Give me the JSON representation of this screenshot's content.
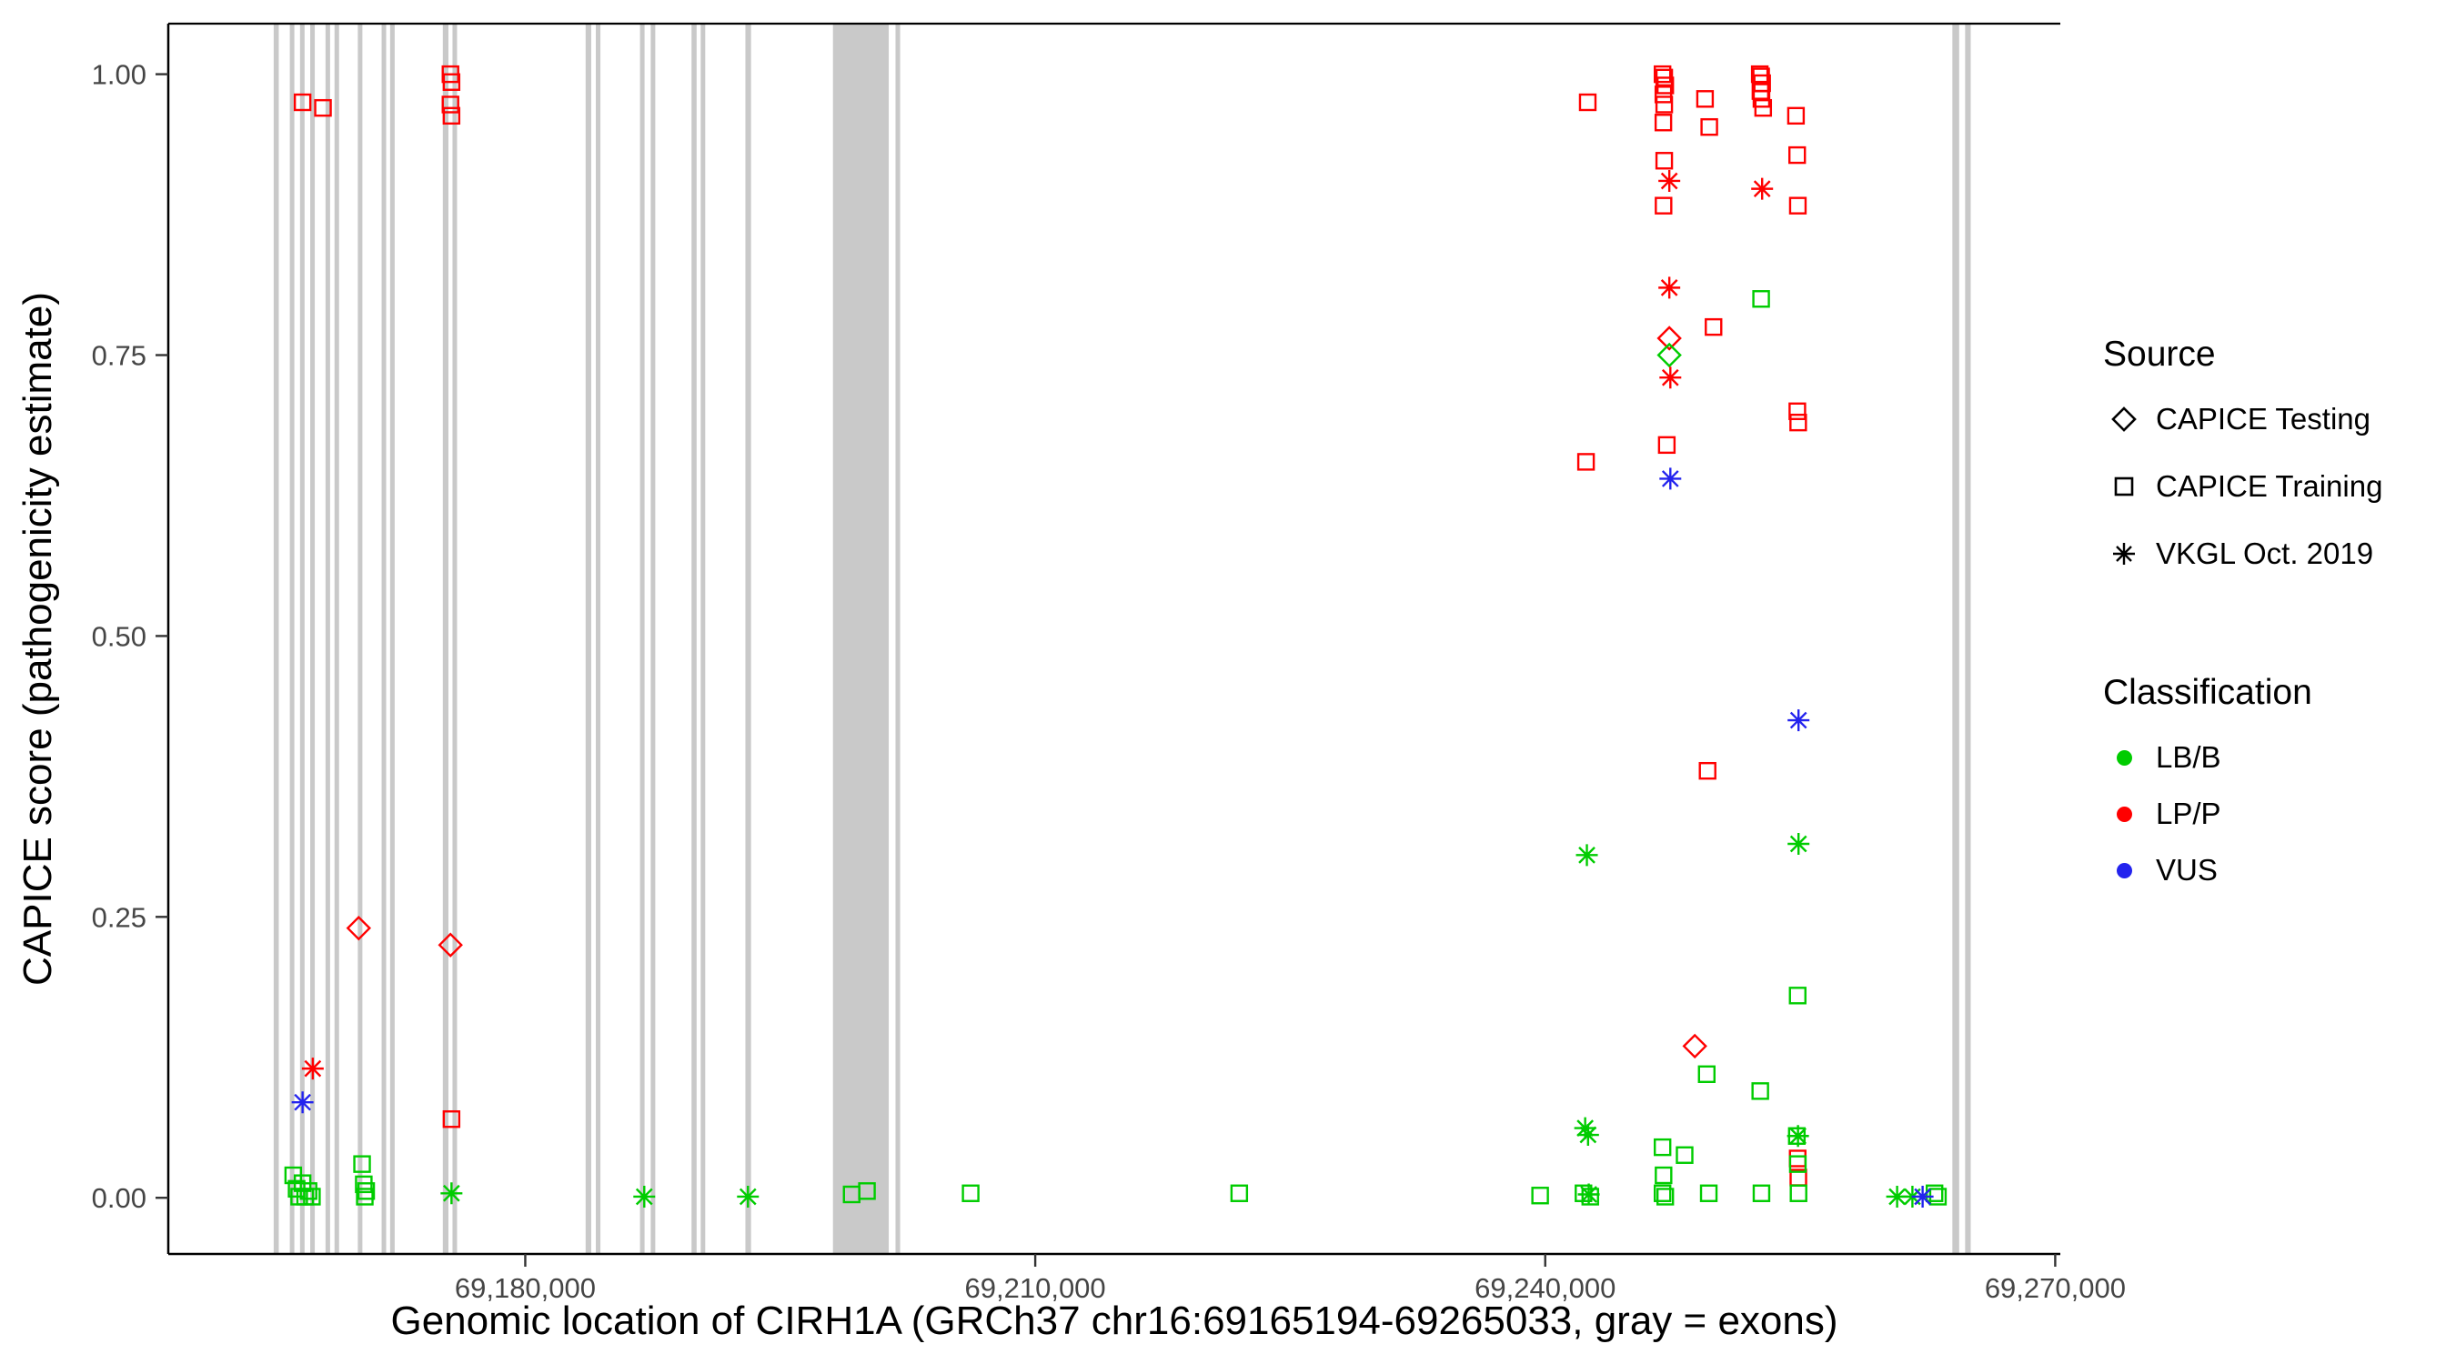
{
  "chart_data": {
    "type": "scatter",
    "xlabel": "Genomic location of CIRH1A (GRCh37 chr16:69165194-69265033, gray = exons)",
    "ylabel": "CAPICE score (pathogenicity estimate)",
    "xlim": [
      69159000,
      69270300
    ],
    "ylim": [
      -0.05,
      1.045
    ],
    "x_ticks": [
      {
        "value": 69180000,
        "label": "69,180,000"
      },
      {
        "value": 69210000,
        "label": "69,210,000"
      },
      {
        "value": 69240000,
        "label": "69,240,000"
      },
      {
        "value": 69270000,
        "label": "69,270,000"
      }
    ],
    "y_ticks": [
      {
        "value": 0.0,
        "label": "0.00"
      },
      {
        "value": 0.25,
        "label": "0.25"
      },
      {
        "value": 0.5,
        "label": "0.50"
      },
      {
        "value": 0.75,
        "label": "0.75"
      },
      {
        "value": 1.0,
        "label": "1.00"
      }
    ],
    "colors": {
      "LB/B": "#00cc00",
      "LP/P": "#ff0000",
      "VUS": "#2323ee",
      "exon": "#c9c9c9",
      "axis": "#000000",
      "tick_label": "#454545"
    },
    "exons": [
      [
        69165200,
        69165500
      ],
      [
        69166150,
        69166400
      ],
      [
        69166750,
        69166980
      ],
      [
        69167350,
        69167580
      ],
      [
        69168250,
        69168480
      ],
      [
        69168780,
        69169000
      ],
      [
        69170150,
        69170400
      ],
      [
        69171550,
        69171800
      ],
      [
        69172050,
        69172300
      ],
      [
        69175150,
        69175480
      ],
      [
        69175720,
        69175980
      ],
      [
        69183550,
        69183880
      ],
      [
        69184150,
        69184420
      ],
      [
        69186750,
        69187000
      ],
      [
        69187380,
        69187620
      ],
      [
        69189780,
        69190080
      ],
      [
        69190320,
        69190560
      ],
      [
        69192950,
        69193280
      ],
      [
        69198100,
        69201380
      ],
      [
        69201780,
        69202050
      ],
      [
        69263950,
        69264350
      ],
      [
        69264700,
        69265030
      ]
    ],
    "series": [
      {
        "name": "CAPICE Testing - LP/P",
        "source": "CAPICE Testing",
        "classification": "LP/P",
        "marker": "diamond",
        "points": [
          [
            69170200,
            0.24
          ],
          [
            69175600,
            0.225
          ],
          [
            69247300,
            0.765
          ],
          [
            69248800,
            0.135
          ]
        ]
      },
      {
        "name": "CAPICE Testing - LB/B",
        "source": "CAPICE Testing",
        "classification": "LB/B",
        "marker": "diamond",
        "points": [
          [
            69247300,
            0.75
          ]
        ]
      },
      {
        "name": "CAPICE Training - LP/P",
        "source": "CAPICE Training",
        "classification": "LP/P",
        "marker": "square",
        "points": [
          [
            69166900,
            0.975
          ],
          [
            69168100,
            0.97
          ],
          [
            69175600,
            1.0
          ],
          [
            69175660,
            0.993
          ],
          [
            69175600,
            0.973
          ],
          [
            69175660,
            0.963
          ],
          [
            69175660,
            0.07
          ],
          [
            69242500,
            0.975
          ],
          [
            69242400,
            0.655
          ],
          [
            69246900,
            1.0
          ],
          [
            69247000,
            0.997
          ],
          [
            69247060,
            0.99
          ],
          [
            69246950,
            0.982
          ],
          [
            69247000,
            0.973
          ],
          [
            69246950,
            0.957
          ],
          [
            69247000,
            0.923
          ],
          [
            69246960,
            0.883
          ],
          [
            69247150,
            0.67
          ],
          [
            69249400,
            0.978
          ],
          [
            69249650,
            0.953
          ],
          [
            69249900,
            0.775
          ],
          [
            69249550,
            0.38
          ],
          [
            69252620,
            1.0
          ],
          [
            69252700,
            0.998
          ],
          [
            69252760,
            0.992
          ],
          [
            69252660,
            0.985
          ],
          [
            69252720,
            0.978
          ],
          [
            69252820,
            0.97
          ],
          [
            69254750,
            0.963
          ],
          [
            69254820,
            0.928
          ],
          [
            69254860,
            0.883
          ],
          [
            69254830,
            0.7
          ],
          [
            69254880,
            0.69
          ],
          [
            69254850,
            0.035
          ],
          [
            69254890,
            0.018
          ]
        ]
      },
      {
        "name": "CAPICE Training - LB/B",
        "source": "CAPICE Training",
        "classification": "LB/B",
        "marker": "square",
        "points": [
          [
            69166350,
            0.02
          ],
          [
            69166550,
            0.008
          ],
          [
            69166700,
            0.001
          ],
          [
            69166900,
            0.013
          ],
          [
            69167050,
            0.001
          ],
          [
            69167250,
            0.006
          ],
          [
            69167450,
            0.001
          ],
          [
            69170400,
            0.03
          ],
          [
            69170500,
            0.012
          ],
          [
            69170560,
            0.001
          ],
          [
            69170640,
            0.006
          ],
          [
            69199200,
            0.003
          ],
          [
            69200100,
            0.006
          ],
          [
            69206200,
            0.004
          ],
          [
            69222000,
            0.004
          ],
          [
            69239700,
            0.002
          ],
          [
            69242250,
            0.004
          ],
          [
            69242650,
            0.001
          ],
          [
            69246900,
            0.045
          ],
          [
            69246960,
            0.02
          ],
          [
            69246900,
            0.004
          ],
          [
            69247060,
            0.001
          ],
          [
            69248200,
            0.038
          ],
          [
            69249500,
            0.11
          ],
          [
            69249620,
            0.004
          ],
          [
            69252700,
            0.8
          ],
          [
            69252650,
            0.095
          ],
          [
            69252720,
            0.004
          ],
          [
            69254850,
            0.18
          ],
          [
            69254800,
            0.055
          ],
          [
            69254860,
            0.03
          ],
          [
            69254900,
            0.004
          ],
          [
            69262900,
            0.004
          ],
          [
            69263100,
            0.001
          ]
        ]
      },
      {
        "name": "VKGL Oct. 2019 - LP/P",
        "source": "VKGL Oct. 2019",
        "classification": "LP/P",
        "marker": "asterisk",
        "points": [
          [
            69167500,
            0.115
          ],
          [
            69247300,
            0.905
          ],
          [
            69247300,
            0.81
          ],
          [
            69247360,
            0.73
          ],
          [
            69252760,
            0.898
          ]
        ]
      },
      {
        "name": "VKGL Oct. 2019 - LB/B",
        "source": "VKGL Oct. 2019",
        "classification": "LB/B",
        "marker": "asterisk",
        "points": [
          [
            69175660,
            0.004
          ],
          [
            69187000,
            0.001
          ],
          [
            69193100,
            0.001
          ],
          [
            69242350,
            0.062
          ],
          [
            69242520,
            0.056
          ],
          [
            69242560,
            0.003
          ],
          [
            69242450,
            0.305
          ],
          [
            69254900,
            0.315
          ],
          [
            69254870,
            0.055
          ],
          [
            69260700,
            0.001
          ],
          [
            69261600,
            0.001
          ]
        ]
      },
      {
        "name": "VKGL Oct. 2019 - VUS",
        "source": "VKGL Oct. 2019",
        "classification": "VUS",
        "marker": "asterisk",
        "points": [
          [
            69166900,
            0.085
          ],
          [
            69247360,
            0.64
          ],
          [
            69254900,
            0.425
          ],
          [
            69262200,
            0.001
          ]
        ]
      }
    ],
    "legend": {
      "source_title": "Source",
      "source_items": [
        {
          "label": "CAPICE Testing",
          "marker": "diamond"
        },
        {
          "label": "CAPICE Training",
          "marker": "square"
        },
        {
          "label": "VKGL Oct. 2019",
          "marker": "asterisk"
        }
      ],
      "classification_title": "Classification",
      "classification_items": [
        {
          "label": "LB/B",
          "color": "#00cc00"
        },
        {
          "label": "LP/P",
          "color": "#ff0000"
        },
        {
          "label": "VUS",
          "color": "#2323ee"
        }
      ]
    }
  }
}
